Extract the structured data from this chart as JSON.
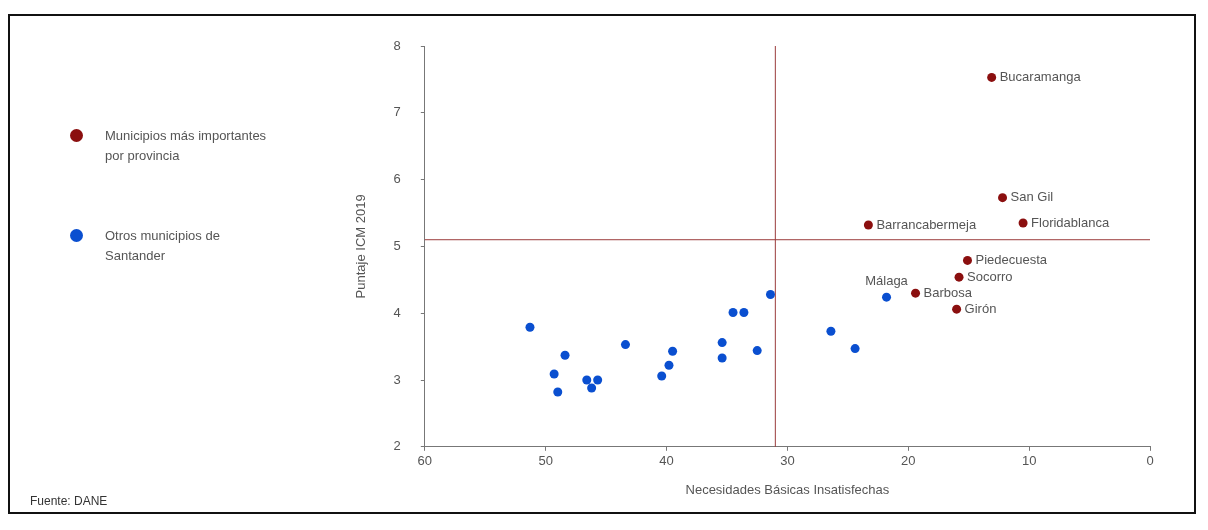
{
  "chart_data": {
    "type": "scatter",
    "xlabel": "Necesidades Básicas Insatisfechas",
    "ylabel": "Puntaje ICM 2019",
    "xlim": [
      60,
      0
    ],
    "xticks": [
      60,
      50,
      40,
      30,
      20,
      10,
      0
    ],
    "ylim": [
      2,
      8
    ],
    "yticks": [
      2,
      3,
      4,
      5,
      6,
      7,
      8
    ],
    "grid": false,
    "legend": "left",
    "marker": "circle",
    "series": [
      {
        "name": "Municipios más importantes por provincia",
        "color": "#8b0f0f",
        "x": [
          13.1,
          12.2,
          10.5,
          23.3,
          15.1,
          15.8,
          19.4,
          16.0
        ],
        "values": [
          7.53,
          5.73,
          5.35,
          5.32,
          4.79,
          4.54,
          4.3,
          4.06
        ]
      },
      {
        "name": "Otros municipios de Santander",
        "color": "#0a4fd0",
        "x": [
          21.8,
          26.4,
          24.4,
          51.3,
          49.3,
          49.0,
          48.4,
          46.6,
          45.7,
          46.2,
          43.4,
          40.4,
          39.8,
          39.5,
          35.4,
          35.4,
          34.5,
          33.6,
          32.5,
          31.4
        ],
        "values": [
          4.24,
          3.73,
          3.47,
          3.79,
          3.09,
          2.82,
          3.37,
          3.0,
          3.0,
          2.88,
          3.53,
          3.06,
          3.22,
          3.43,
          3.56,
          3.33,
          4.01,
          4.01,
          3.44,
          4.28
        ]
      }
    ],
    "ref_lines": [
      {
        "axis": "x",
        "value": 31,
        "color": "#9b3b3b"
      },
      {
        "axis": "y",
        "value": 5.1,
        "color": "#9b3b3b"
      }
    ],
    "annotations": [
      {
        "text": "Bucaramanga",
        "x": 13.1,
        "y": 7.53
      },
      {
        "text": "San Gil",
        "x": 12.2,
        "y": 5.73
      },
      {
        "text": "Floridablanca",
        "x": 10.5,
        "y": 5.35
      },
      {
        "text": "Barrancabermeja",
        "x": 23.3,
        "y": 5.32
      },
      {
        "text": "Piedecuesta",
        "x": 15.1,
        "y": 4.79
      },
      {
        "text": "Socorro",
        "x": 15.8,
        "y": 4.54
      },
      {
        "text": "Barbosa",
        "x": 19.4,
        "y": 4.3
      },
      {
        "text": "Girón",
        "x": 16.0,
        "y": 4.06
      },
      {
        "text": "Málaga",
        "x": 21.8,
        "y": 4.24
      },
      "Fuente: DANE"
    ]
  }
}
